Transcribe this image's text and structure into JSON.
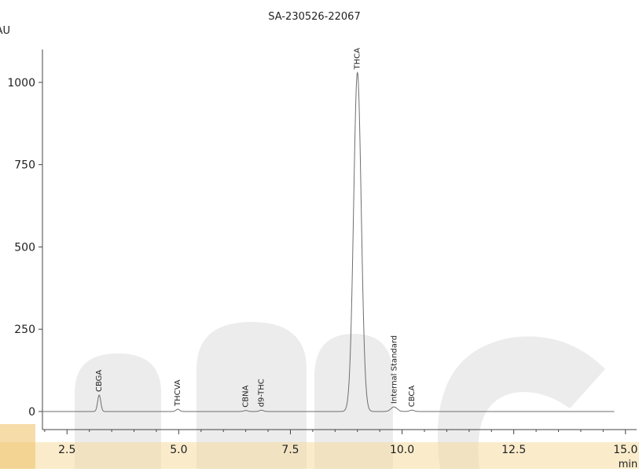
{
  "chart_data": {
    "type": "line",
    "title": "SA-230526-22067",
    "y_unit_label": "mAU",
    "x_unit_label": "min",
    "xlim": [
      1.95,
      15.25
    ],
    "ylim": [
      -55,
      1100
    ],
    "x_ticks": [
      2.5,
      5.0,
      7.5,
      10.0,
      12.5,
      15.0
    ],
    "x_tick_labels": [
      "2.5",
      "5.0",
      "7.5",
      "10.0",
      "12.5",
      "15.0"
    ],
    "y_ticks": [
      0,
      250,
      500,
      750,
      1000
    ],
    "y_tick_labels": [
      "0",
      "250",
      "500",
      "750",
      "1000"
    ],
    "grid": false,
    "series": [
      {
        "trace_start": 1.95,
        "trace_end": 14.75,
        "baseline": 0,
        "peaks": [
          {
            "label": "CBGA",
            "x": 3.22,
            "height": 50,
            "width": 0.035
          },
          {
            "label": "THCVA",
            "x": 4.98,
            "height": 7,
            "width": 0.04
          },
          {
            "label": "CBNA",
            "x": 6.5,
            "height": 3,
            "width": 0.045
          },
          {
            "label": "d9-THC",
            "x": 6.85,
            "height": 4,
            "width": 0.045
          },
          {
            "label": "THCA",
            "x": 9.0,
            "height": 1030,
            "width": 0.085
          },
          {
            "label": "Internal Standard",
            "x": 9.82,
            "height": 14,
            "width": 0.07
          },
          {
            "label": "CBCA",
            "x": 10.22,
            "height": 4,
            "width": 0.05
          }
        ]
      }
    ]
  },
  "colors": {
    "trace": "#6e6e6e",
    "axis": "#444444",
    "watermark_gray": "#ececec",
    "watermark_orange": "#f1d08c"
  }
}
